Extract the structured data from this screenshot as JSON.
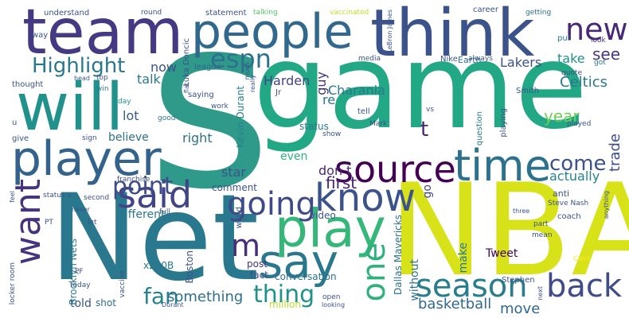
{
  "words": {
    "s": {
      "text": "s",
      "color": "#2f9a8a"
    },
    "game": {
      "text": "game",
      "color": "#22a884"
    },
    "nba": {
      "text": "NBA",
      "color": "#d8e219"
    },
    "net": {
      "text": "Net",
      "color": "#2a788e"
    },
    "team": {
      "text": "team",
      "color": "#443983"
    },
    "people": {
      "text": "people",
      "color": "#31688e"
    },
    "think": {
      "text": "think",
      "color": "#3b528b"
    },
    "will": {
      "text": "will",
      "color": "#21918c"
    },
    "player": {
      "text": "player",
      "color": "#33638d"
    },
    "said": {
      "text": "said",
      "color": "#414487"
    },
    "play": {
      "text": "play",
      "color": "#35b779"
    },
    "say": {
      "text": "say",
      "color": "#2a788e"
    },
    "time": {
      "text": "time",
      "color": "#2c728e"
    },
    "source": {
      "text": "source",
      "color": "#440154"
    },
    "season": {
      "text": "season",
      "color": "#287d8e"
    },
    "going": {
      "text": "going",
      "color": "#3e4a89"
    },
    "know": {
      "text": "know",
      "color": "#3b528b"
    },
    "want": {
      "text": "want",
      "color": "#46337e"
    },
    "one": {
      "text": "one",
      "color": "#2db27d"
    },
    "back": {
      "text": "back",
      "color": "#3e4c8a"
    },
    "new": {
      "text": "new",
      "color": "#482878"
    },
    "highlight": {
      "text": "Highlight",
      "color": "#2a788e"
    },
    "espn": {
      "text": "espn",
      "color": "#2c728e"
    },
    "thing": {
      "text": "thing",
      "color": "#21918c"
    },
    "m": {
      "text": "m",
      "color": "#472c7a"
    },
    "come": {
      "text": "come",
      "color": "#3b528b"
    },
    "point": {
      "text": "point",
      "color": "#3e4c8a"
    },
    "fan": {
      "text": "fan",
      "color": "#26828e"
    },
    "something": {
      "text": "something",
      "color": "#2d708e"
    },
    "basketball": {
      "text": "basketball",
      "color": "#31688e"
    },
    "celtics": {
      "text": "Celtics",
      "color": "#2a788e"
    },
    "see": {
      "text": "see",
      "color": "#443983"
    },
    "take": {
      "text": "take",
      "color": "#21918c"
    },
    "lakers": {
      "text": "Lakers",
      "color": "#3b528b"
    },
    "year": {
      "text": "year",
      "color": "#6ece58"
    },
    "trade": {
      "text": "trade",
      "color": "#3e4a89"
    },
    "move": {
      "text": "move",
      "color": "#31688e"
    },
    "actually": {
      "text": "actually",
      "color": "#25838e"
    },
    "dont": {
      "text": "don t",
      "color": "#482878"
    },
    "first": {
      "text": "first",
      "color": "#482173"
    },
    "t": {
      "text": "t",
      "color": "#481f70"
    },
    "re": {
      "text": "re",
      "color": "#2c728e"
    },
    "charania": {
      "text": "Charania",
      "color": "#2a788e"
    },
    "harden": {
      "text": "Harden",
      "color": "#414487"
    },
    "guy": {
      "text": "guy",
      "color": "#46337e"
    },
    "now": {
      "text": "now",
      "color": "#3b528b"
    },
    "talk": {
      "text": "talk",
      "color": "#2a788e"
    },
    "lot": {
      "text": "lot",
      "color": "#38598c"
    },
    "believe": {
      "text": "believe",
      "color": "#2d708e"
    },
    "right": {
      "text": "right",
      "color": "#2d708e"
    },
    "star": {
      "text": "star",
      "color": "#3a548c"
    },
    "different": {
      "text": "different",
      "color": "#2a788e"
    },
    "comment": {
      "text": "comment",
      "color": "#3b528b"
    },
    "status": {
      "text": "status",
      "color": "#2a788e"
    },
    "even": {
      "text": "even",
      "color": "#2db27d"
    },
    "go": {
      "text": "go",
      "color": "#404688"
    },
    "without": {
      "text": "without",
      "color": "#2c728e"
    },
    "make": {
      "text": "make",
      "color": "#2a788e"
    },
    "video": {
      "text": "video",
      "color": "#3b528b"
    },
    "tweet": {
      "text": "Tweet",
      "color": "#440154"
    },
    "told": {
      "text": "told",
      "color": "#3b528b"
    },
    "shot": {
      "text": "shot",
      "color": "#2d708e"
    },
    "brooklyn_nets": {
      "text": "Brooklyn Nets",
      "color": "#2a788e"
    },
    "x200b": {
      "text": "x200B",
      "color": "#2a788e"
    },
    "boston": {
      "text": "Boston",
      "color": "#3b528b"
    },
    "post": {
      "text": "post",
      "color": "#46337e"
    },
    "fact": {
      "text": "fact",
      "color": "#3e4c8a"
    },
    "conversation": {
      "text": "conversation",
      "color": "#2c728e"
    },
    "million": {
      "text": "million",
      "color": "#b5de2b"
    },
    "dallas_mavericks": {
      "text": "Dallas Mavericks",
      "color": "#2c728e"
    },
    "kevin_durant": {
      "text": "Kevin Durant",
      "color": "#25838e"
    },
    "luka_doncic": {
      "text": "Luka Doncic",
      "color": "#3b528b"
    },
    "league": {
      "text": "league",
      "color": "#31688e"
    },
    "statement": {
      "text": "statement",
      "color": "#3b528b"
    },
    "talking": {
      "text": "talking",
      "color": "#52c569"
    },
    "vaccinated": {
      "text": "vaccinated",
      "color": "#c2df23"
    },
    "lebron_james": {
      "text": "LeBron James",
      "color": "#3b528b"
    },
    "career": {
      "text": "career",
      "color": "#3b528b"
    },
    "getting": {
      "text": "getting",
      "color": "#2d708e"
    },
    "put": {
      "text": "put",
      "color": "#2c728e"
    },
    "look": {
      "text": "look",
      "color": "#46337e"
    },
    "got": {
      "text": "got",
      "color": "#2a788e"
    },
    "quote": {
      "text": "quote",
      "color": "#3e4a89"
    },
    "nike": {
      "text": "Nike",
      "color": "#3b528b"
    },
    "earth": {
      "text": "Earth",
      "color": "#2d708e"
    },
    "always": {
      "text": "always",
      "color": "#3b528b"
    },
    "media": {
      "text": "media",
      "color": "#3b528b"
    },
    "understand": {
      "text": "understand",
      "color": "#3b528b"
    },
    "round": {
      "text": "round",
      "color": "#3b528b"
    },
    "way": {
      "text": "way",
      "color": "#3b528b"
    },
    "top": {
      "text": "top",
      "color": "#3b528b"
    },
    "win": {
      "text": "win",
      "color": "#2a788e"
    },
    "head": {
      "text": "head",
      "color": "#3b528b"
    },
    "thought": {
      "text": "thought",
      "color": "#3b528b"
    },
    "u": {
      "text": "u",
      "color": "#3b528b"
    },
    "give": {
      "text": "give",
      "color": "#3b528b"
    },
    "sign": {
      "text": "sign",
      "color": "#3b528b"
    },
    "good": {
      "text": "good",
      "color": "#2d708e"
    },
    "day": {
      "text": "day",
      "color": "#21918c"
    },
    "flat": {
      "text": "flat",
      "color": "#3b528b"
    },
    "saying": {
      "text": "saying",
      "color": "#3b528b"
    },
    "work": {
      "text": "work",
      "color": "#3b528b"
    },
    "much": {
      "text": "much",
      "color": "#3b528b"
    },
    "really": {
      "text": "really",
      "color": "#3b528b"
    },
    "jr": {
      "text": "Jr",
      "color": "#3b528b"
    },
    "tell": {
      "text": "tell",
      "color": "#3b528b"
    },
    "mark": {
      "text": "Mark",
      "color": "#3b528b"
    },
    "show": {
      "text": "show",
      "color": "#3b528b"
    },
    "vs": {
      "text": "vs",
      "color": "#3b528b"
    },
    "playing": {
      "text": "playing",
      "color": "#3b528b"
    },
    "question": {
      "text": "question",
      "color": "#2a788e"
    },
    "smith": {
      "text": "Smith",
      "color": "#3b528b"
    },
    "played": {
      "text": "played",
      "color": "#3b528b"
    },
    "anti": {
      "text": "anti",
      "color": "#3b528b"
    },
    "steve_nash": {
      "text": "Steve Nash",
      "color": "#3b528b"
    },
    "coach": {
      "text": "coach",
      "color": "#3b528b"
    },
    "part": {
      "text": "part",
      "color": "#3b528b"
    },
    "mean": {
      "text": "mean",
      "color": "#3b528b"
    },
    "three": {
      "text": "three",
      "color": "#3b528b"
    },
    "cavs": {
      "text": "Cavs",
      "color": "#fde725"
    },
    "stephen": {
      "text": "Stephen",
      "color": "#3b528b"
    },
    "next": {
      "text": "next",
      "color": "#3b528b"
    },
    "anything": {
      "text": "anything",
      "color": "#3b528b"
    },
    "franchise": {
      "text": "franchise",
      "color": "#3b528b"
    },
    "status_s": {
      "text": "status s",
      "color": "#3b528b"
    },
    "second": {
      "text": "second",
      "color": "#3b528b"
    },
    "full": {
      "text": "full",
      "color": "#3b528b"
    },
    "feel": {
      "text": "feel",
      "color": "#3b528b"
    },
    "never": {
      "text": "never",
      "color": "#3b528b"
    },
    "let": {
      "text": "let",
      "color": "#3b528b"
    },
    "pt": {
      "text": "PT",
      "color": "#3b528b"
    },
    "world": {
      "text": "world",
      "color": "#3b528b"
    },
    "pf": {
      "text": "PF",
      "color": "#3b528b"
    },
    "vaccine": {
      "text": "vaccine",
      "color": "#3b528b"
    },
    "today": {
      "text": "today",
      "color": "#3b528b"
    },
    "locker_room": {
      "text": "locker room",
      "color": "#3b528b"
    },
    "durant": {
      "text": "Durant",
      "color": "#3b528b"
    },
    "open": {
      "text": "open",
      "color": "#3b528b"
    },
    "looking": {
      "text": "looking",
      "color": "#3b528b"
    }
  }
}
